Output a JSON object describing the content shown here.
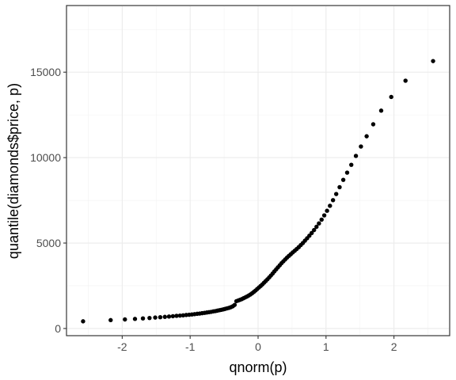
{
  "chart_data": {
    "type": "scatter",
    "title": "",
    "xlabel": "qnorm(p)",
    "ylabel": "quantile(diamonds$price, p)",
    "xlim": [
      -2.82,
      2.82
    ],
    "ylim": [
      -420,
      18900
    ],
    "x_ticks": [
      -2,
      -1,
      0,
      1,
      2
    ],
    "x_tick_labels": [
      "-2",
      "-1",
      "0",
      "1",
      "2"
    ],
    "y_ticks": [
      0,
      5000,
      10000,
      15000
    ],
    "y_tick_labels": [
      "0",
      "5000",
      "10000",
      "15000"
    ],
    "grid": true,
    "legend": "none",
    "point_color": "#000000",
    "points": [
      [
        -2.576,
        420
      ],
      [
        -2.17,
        490
      ],
      [
        -1.96,
        530
      ],
      [
        -1.812,
        560
      ],
      [
        -1.695,
        590
      ],
      [
        -1.598,
        615
      ],
      [
        -1.514,
        640
      ],
      [
        -1.44,
        660
      ],
      [
        -1.372,
        680
      ],
      [
        -1.311,
        700
      ],
      [
        -1.254,
        720
      ],
      [
        -1.2,
        740
      ],
      [
        -1.15,
        755
      ],
      [
        -1.103,
        770
      ],
      [
        -1.058,
        790
      ],
      [
        -1.015,
        805
      ],
      [
        -0.974,
        820
      ],
      [
        -0.935,
        840
      ],
      [
        -0.896,
        860
      ],
      [
        -0.86,
        875
      ],
      [
        -0.824,
        895
      ],
      [
        -0.789,
        915
      ],
      [
        -0.755,
        935
      ],
      [
        -0.722,
        955
      ],
      [
        -0.69,
        975
      ],
      [
        -0.659,
        1000
      ],
      [
        -0.628,
        1020
      ],
      [
        -0.598,
        1045
      ],
      [
        -0.568,
        1070
      ],
      [
        -0.539,
        1095
      ],
      [
        -0.51,
        1120
      ],
      [
        -0.482,
        1150
      ],
      [
        -0.454,
        1180
      ],
      [
        -0.426,
        1210
      ],
      [
        -0.399,
        1250
      ],
      [
        -0.372,
        1300
      ],
      [
        -0.345,
        1380
      ],
      [
        -0.319,
        1600
      ],
      [
        -0.292,
        1640
      ],
      [
        -0.266,
        1680
      ],
      [
        -0.24,
        1720
      ],
      [
        -0.215,
        1770
      ],
      [
        -0.189,
        1820
      ],
      [
        -0.164,
        1870
      ],
      [
        -0.138,
        1930
      ],
      [
        -0.113,
        1990
      ],
      [
        -0.088,
        2060
      ],
      [
        -0.063,
        2140
      ],
      [
        -0.038,
        2220
      ],
      [
        -0.013,
        2310
      ],
      [
        0.013,
        2400
      ],
      [
        0.038,
        2490
      ],
      [
        0.063,
        2580
      ],
      [
        0.088,
        2680
      ],
      [
        0.113,
        2780
      ],
      [
        0.138,
        2880
      ],
      [
        0.164,
        2990
      ],
      [
        0.189,
        3100
      ],
      [
        0.215,
        3220
      ],
      [
        0.24,
        3340
      ],
      [
        0.266,
        3460
      ],
      [
        0.292,
        3580
      ],
      [
        0.319,
        3700
      ],
      [
        0.345,
        3820
      ],
      [
        0.372,
        3930
      ],
      [
        0.399,
        4040
      ],
      [
        0.426,
        4150
      ],
      [
        0.454,
        4250
      ],
      [
        0.482,
        4350
      ],
      [
        0.51,
        4450
      ],
      [
        0.539,
        4550
      ],
      [
        0.568,
        4650
      ],
      [
        0.598,
        4760
      ],
      [
        0.628,
        4880
      ],
      [
        0.659,
        5000
      ],
      [
        0.69,
        5140
      ],
      [
        0.722,
        5280
      ],
      [
        0.755,
        5430
      ],
      [
        0.789,
        5590
      ],
      [
        0.824,
        5760
      ],
      [
        0.86,
        5950
      ],
      [
        0.896,
        6150
      ],
      [
        0.935,
        6370
      ],
      [
        0.974,
        6620
      ],
      [
        1.015,
        6890
      ],
      [
        1.058,
        7180
      ],
      [
        1.103,
        7510
      ],
      [
        1.15,
        7870
      ],
      [
        1.2,
        8270
      ],
      [
        1.254,
        8700
      ],
      [
        1.311,
        9120
      ],
      [
        1.372,
        9580
      ],
      [
        1.44,
        10100
      ],
      [
        1.514,
        10650
      ],
      [
        1.598,
        11250
      ],
      [
        1.695,
        11950
      ],
      [
        1.812,
        12750
      ],
      [
        1.96,
        13550
      ],
      [
        2.17,
        14500
      ],
      [
        2.576,
        15650
      ]
    ]
  }
}
